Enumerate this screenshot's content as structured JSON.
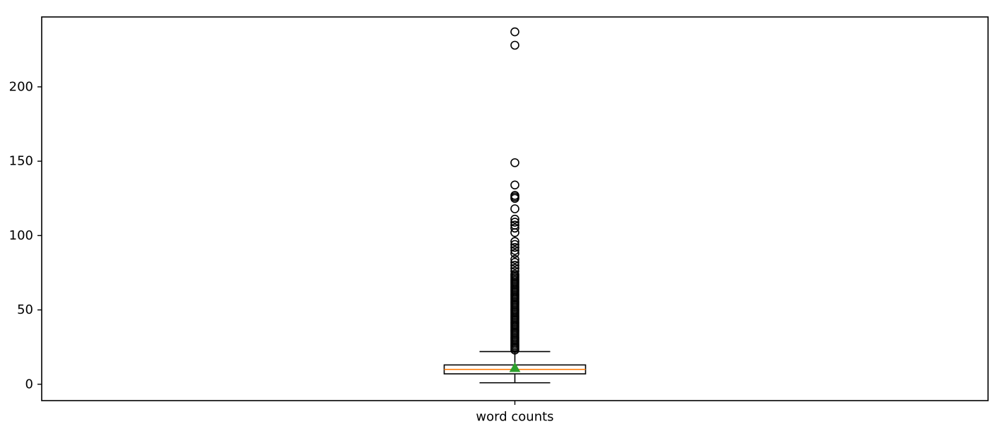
{
  "chart_data": {
    "type": "boxplot",
    "title": "",
    "xlabel": "",
    "ylabel": "",
    "categories": [
      "word counts"
    ],
    "ylim": [
      -11,
      247
    ],
    "y_ticks": [
      0,
      50,
      100,
      150,
      200
    ],
    "y_tick_labels": [
      "0",
      "50",
      "100",
      "150",
      "200"
    ],
    "grid": false,
    "legend": "none",
    "box": {
      "whisker_low": 1,
      "q1": 7,
      "median": 10,
      "q3": 13,
      "whisker_high": 22,
      "mean": 11
    },
    "outliers": [
      23,
      24,
      25,
      26,
      27,
      28,
      29,
      30,
      31,
      32,
      33,
      34,
      35,
      36,
      37,
      38,
      39,
      40,
      41,
      42,
      43,
      44,
      45,
      46,
      47,
      48,
      49,
      50,
      51,
      52,
      53,
      54,
      55,
      56,
      57,
      58,
      59,
      60,
      61,
      62,
      63,
      64,
      65,
      66,
      67,
      68,
      69,
      70,
      71,
      72,
      73,
      74,
      76,
      78,
      80,
      82,
      84,
      88,
      90,
      92,
      94,
      96,
      102,
      105,
      107,
      109,
      111,
      118,
      125,
      126,
      127,
      134,
      149,
      228,
      237
    ],
    "colors": {
      "box": "#000000",
      "median": "#ff7f0e",
      "mean": "#2ca02c",
      "outlier": "#000000"
    }
  }
}
